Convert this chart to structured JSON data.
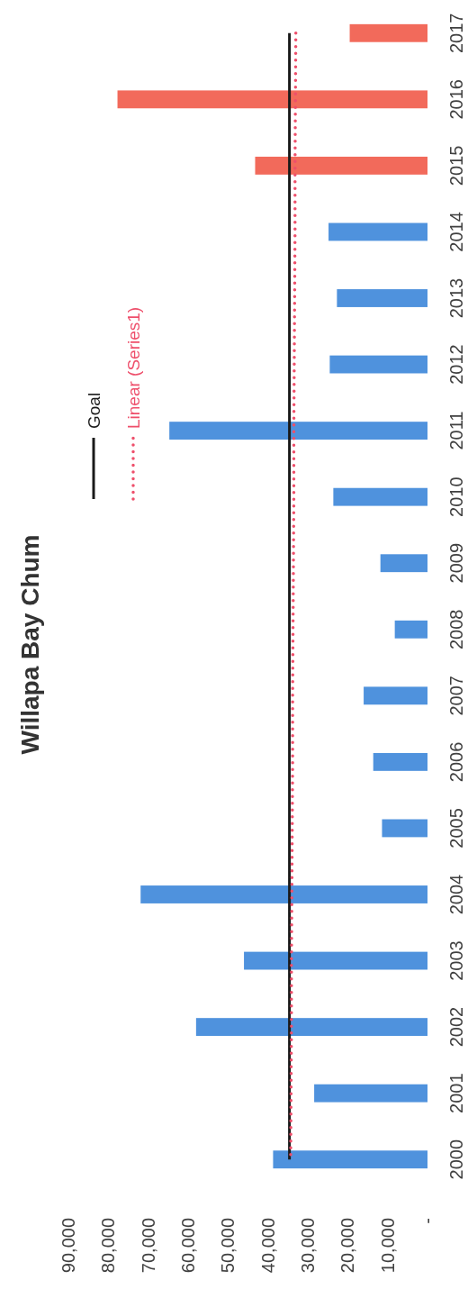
{
  "chart_data": {
    "type": "bar",
    "orientation": "horizontal",
    "title": "Willapa Bay Chum",
    "categories": [
      "2017",
      "2016",
      "2015",
      "2014",
      "2013",
      "2012",
      "2011",
      "2010",
      "2009",
      "2008",
      "2007",
      "2006",
      "2005",
      "2004",
      "2003",
      "2002",
      "2001",
      "2000"
    ],
    "xlim": [
      90000,
      0
    ],
    "xticks": [
      {
        "value": 90000,
        "label": "90,000"
      },
      {
        "value": 80000,
        "label": "80,000"
      },
      {
        "value": 70000,
        "label": "70,000"
      },
      {
        "value": 60000,
        "label": "60,000"
      },
      {
        "value": 50000,
        "label": "50,000"
      },
      {
        "value": 40000,
        "label": "40,000"
      },
      {
        "value": 30000,
        "label": "30,000"
      },
      {
        "value": 20000,
        "label": "20,000"
      },
      {
        "value": 10000,
        "label": "10,000"
      },
      {
        "value": 0,
        "label": "-"
      }
    ],
    "legend": "top left",
    "series": [
      {
        "values": [
          19500,
          77700,
          43200,
          24800,
          22700,
          24500,
          64700,
          23600,
          11800,
          8200,
          16000,
          13600,
          11400,
          71900,
          46000,
          58000,
          28400,
          38700
        ],
        "colors": [
          "#f26a5b",
          "#f26a5b",
          "#f26a5b",
          "#4f92dd",
          "#4f92dd",
          "#4f92dd",
          "#4f92dd",
          "#4f92dd",
          "#4f92dd",
          "#4f92dd",
          "#4f92dd",
          "#4f92dd",
          "#4f92dd",
          "#4f92dd",
          "#4f92dd",
          "#4f92dd",
          "#4f92dd",
          "#4f92dd"
        ]
      },
      {
        "type": "line",
        "name": "Goal",
        "color": "#1a1a1a",
        "line_style": "solid",
        "values": [
          34600,
          34600,
          34600,
          34600,
          34600,
          34600,
          34600,
          34600,
          34600,
          34600,
          34600,
          34600,
          34600,
          34600,
          34600,
          34600,
          34600,
          34600
        ]
      },
      {
        "type": "line",
        "name": "Linear (Series1)",
        "color": "#ee4f6b",
        "line_style": "dotted",
        "values": [
          33000,
          33100,
          33200,
          33200,
          33300,
          33400,
          33500,
          33500,
          33600,
          33700,
          33800,
          33800,
          33900,
          34000,
          34100,
          34100,
          34200,
          34300
        ]
      }
    ]
  }
}
